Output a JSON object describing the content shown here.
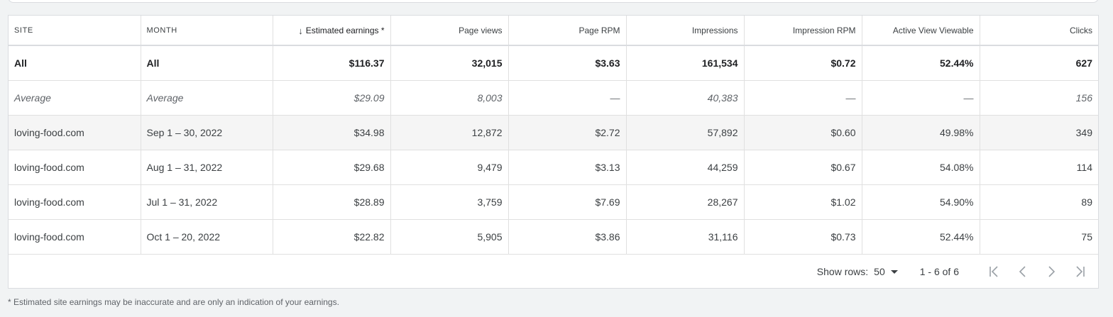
{
  "table": {
    "columns": [
      {
        "key": "site",
        "label": "SITE"
      },
      {
        "key": "month",
        "label": "MONTH"
      },
      {
        "key": "earnings",
        "label": "Estimated earnings *"
      },
      {
        "key": "page_views",
        "label": "Page views"
      },
      {
        "key": "page_rpm",
        "label": "Page RPM"
      },
      {
        "key": "impressions",
        "label": "Impressions"
      },
      {
        "key": "impression_rpm",
        "label": "Impression RPM"
      },
      {
        "key": "active_view",
        "label": "Active View Viewable"
      },
      {
        "key": "clicks",
        "label": "Clicks"
      }
    ],
    "sort_icon": "arrow-down-icon",
    "rows": [
      {
        "site": "All",
        "month": "All",
        "earnings": "$116.37",
        "page_views": "32,015",
        "page_rpm": "$3.63",
        "impressions": "161,534",
        "impression_rpm": "$0.72",
        "active_view": "52.44%",
        "clicks": "627"
      },
      {
        "site": "Average",
        "month": "Average",
        "earnings": "$29.09",
        "page_views": "8,003",
        "page_rpm": "—",
        "impressions": "40,383",
        "impression_rpm": "—",
        "active_view": "—",
        "clicks": "156"
      },
      {
        "site": "loving-food.com",
        "month": "Sep 1 – 30, 2022",
        "earnings": "$34.98",
        "page_views": "12,872",
        "page_rpm": "$2.72",
        "impressions": "57,892",
        "impression_rpm": "$0.60",
        "active_view": "49.98%",
        "clicks": "349"
      },
      {
        "site": "loving-food.com",
        "month": "Aug 1 – 31, 2022",
        "earnings": "$29.68",
        "page_views": "9,479",
        "page_rpm": "$3.13",
        "impressions": "44,259",
        "impression_rpm": "$0.67",
        "active_view": "54.08%",
        "clicks": "114"
      },
      {
        "site": "loving-food.com",
        "month": "Jul 1 – 31, 2022",
        "earnings": "$28.89",
        "page_views": "3,759",
        "page_rpm": "$7.69",
        "impressions": "28,267",
        "impression_rpm": "$1.02",
        "active_view": "54.90%",
        "clicks": "89"
      },
      {
        "site": "loving-food.com",
        "month": "Oct 1 – 20, 2022",
        "earnings": "$22.82",
        "page_views": "5,905",
        "page_rpm": "$3.86",
        "impressions": "31,116",
        "impression_rpm": "$0.73",
        "active_view": "52.44%",
        "clicks": "75"
      }
    ]
  },
  "pagination": {
    "show_rows_label": "Show rows:",
    "rows_value": "50",
    "range": "1 - 6 of 6",
    "icons": [
      "first-page-icon",
      "previous-page-icon",
      "next-page-icon",
      "last-page-icon"
    ]
  },
  "footnote": "* Estimated site earnings may be inaccurate and are only an indication of your earnings.",
  "colors": {
    "background": "#f1f3f4",
    "card": "#ffffff",
    "border": "#dadce0",
    "text": "#3c4043",
    "muted": "#5f6368",
    "disabled_icon": "#9aa0a6"
  }
}
